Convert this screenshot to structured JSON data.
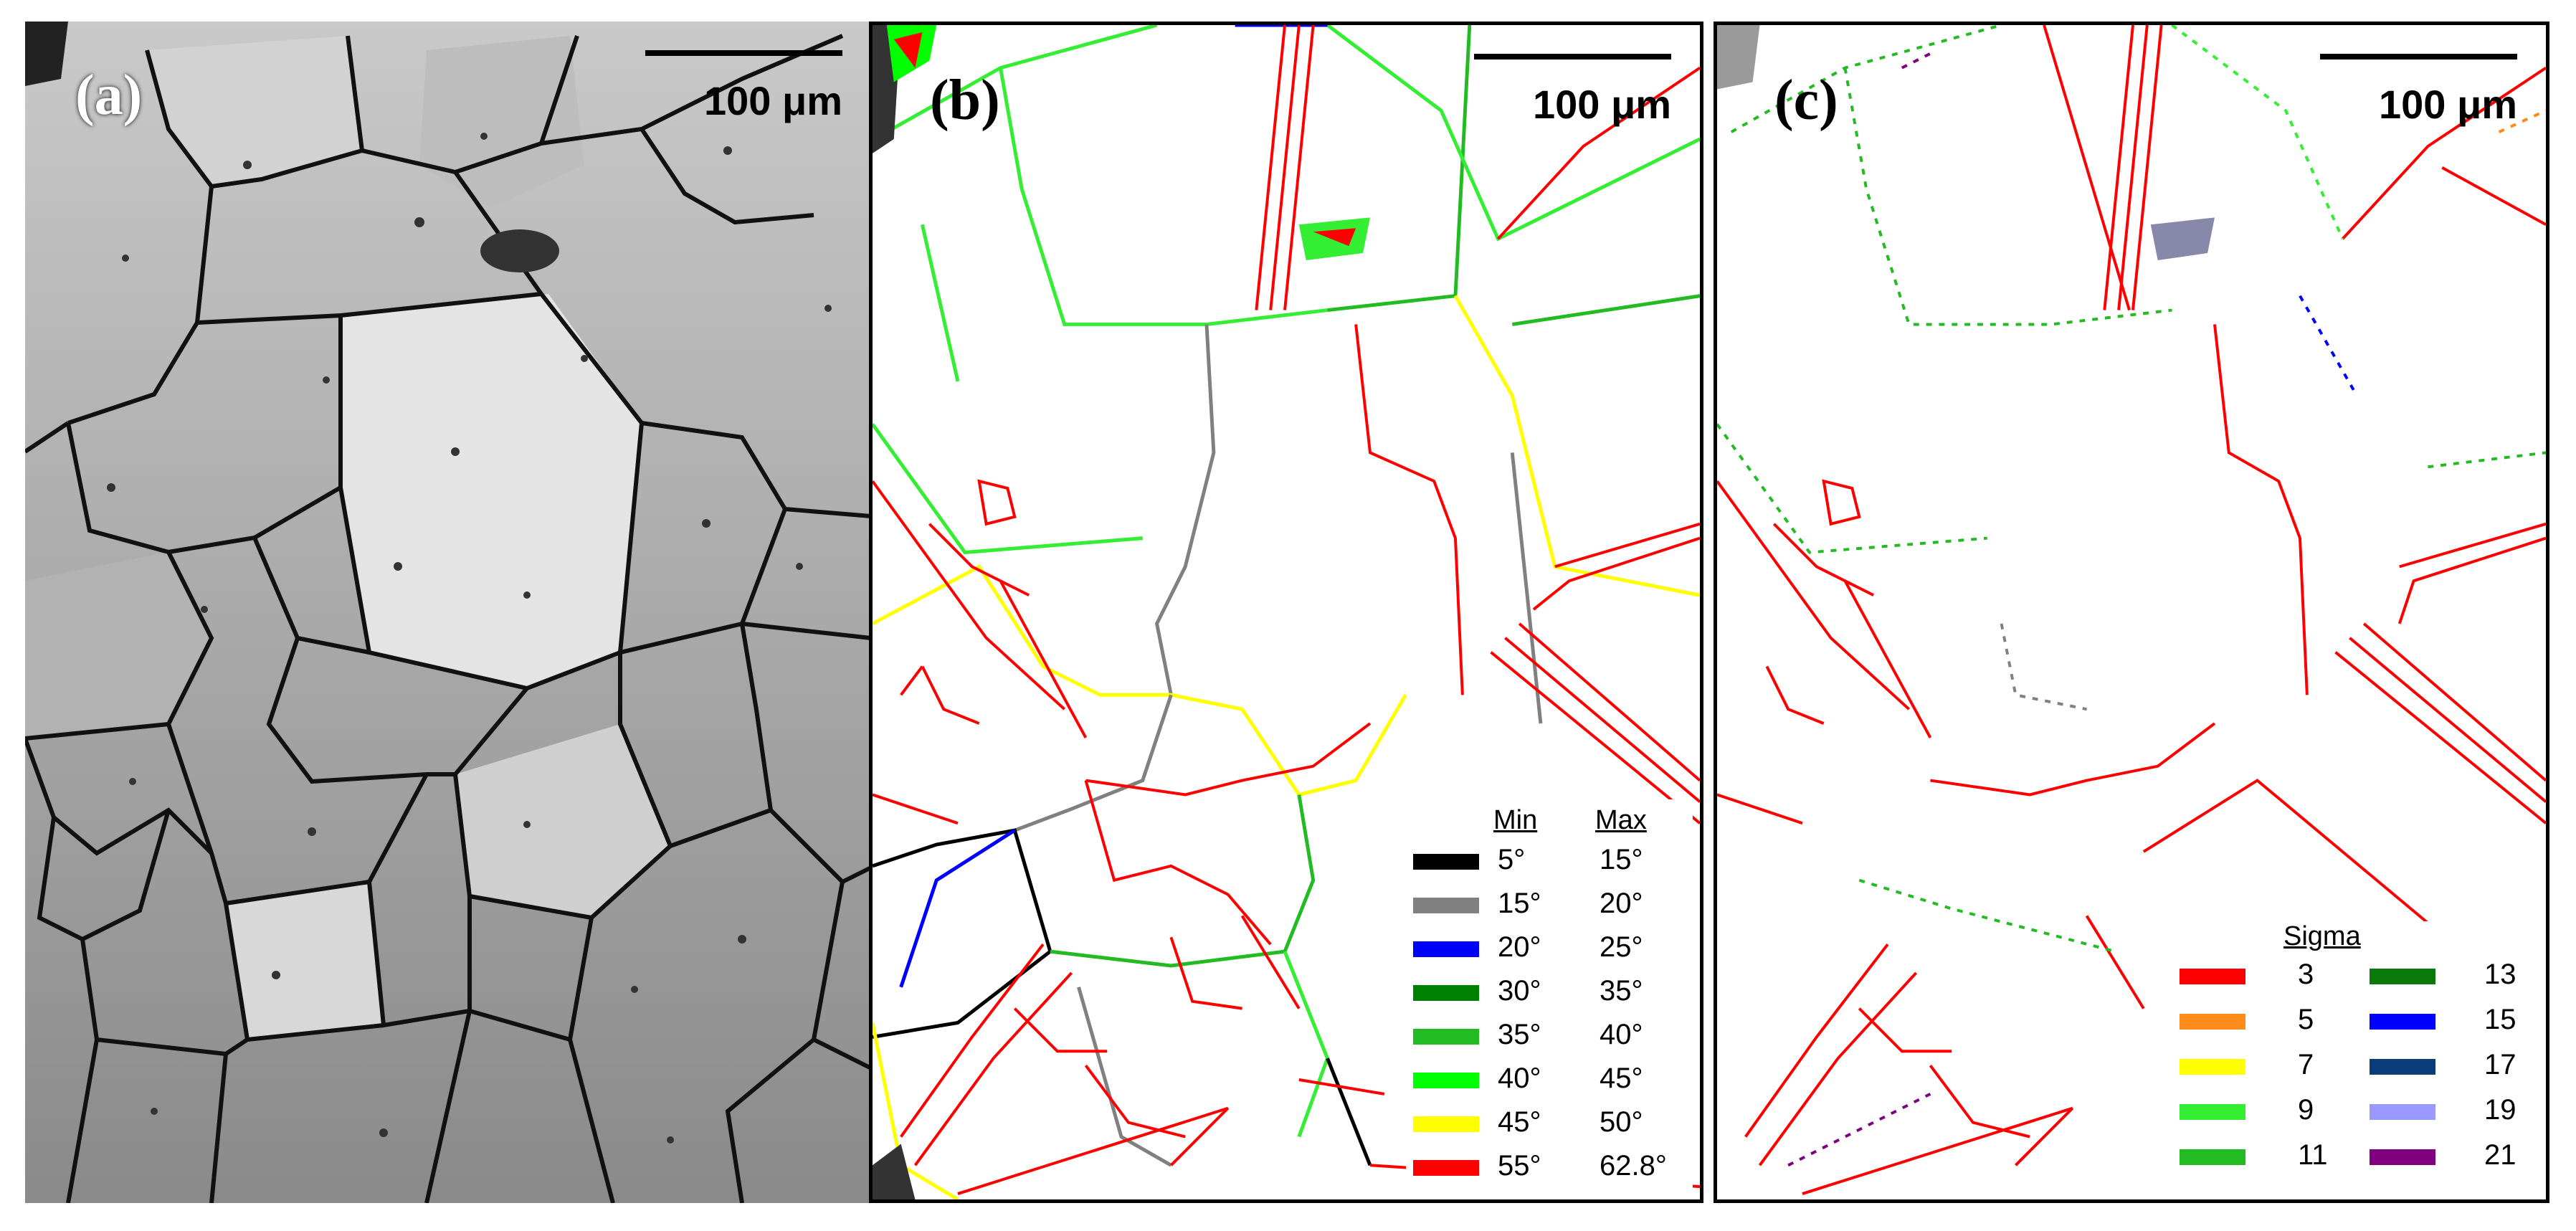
{
  "panels": [
    {
      "label": "(a)",
      "scale_text": "100 μm"
    },
    {
      "label": "(b)",
      "scale_text": "100 μm"
    },
    {
      "label": "(c)",
      "scale_text": "100 μm"
    }
  ],
  "legend_b": {
    "header_min": "Min",
    "header_max": "Max",
    "rows": [
      {
        "min": "5°",
        "max": "15°",
        "color": "#000000"
      },
      {
        "min": "15°",
        "max": "20°",
        "color": "#808080"
      },
      {
        "min": "20°",
        "max": "25°",
        "color": "#0000ff"
      },
      {
        "min": "30°",
        "max": "35°",
        "color": "#008000"
      },
      {
        "min": "35°",
        "max": "40°",
        "color": "#22bb22"
      },
      {
        "min": "40°",
        "max": "45°",
        "color": "#00ff00"
      },
      {
        "min": "45°",
        "max": "50°",
        "color": "#ffff00"
      },
      {
        "min": "55°",
        "max": "62.8°",
        "color": "#ff0000"
      }
    ]
  },
  "legend_c": {
    "header": "Sigma",
    "left": [
      {
        "value": "3",
        "color": "#ff0000"
      },
      {
        "value": "5",
        "color": "#ff8c1a"
      },
      {
        "value": "7",
        "color": "#ffff00"
      },
      {
        "value": "9",
        "color": "#33ee33"
      },
      {
        "value": "11",
        "color": "#22bb22"
      }
    ],
    "right": [
      {
        "value": "13",
        "color": "#0a7a0a"
      },
      {
        "value": "15",
        "color": "#0000ff"
      },
      {
        "value": "17",
        "color": "#0a3d7a"
      },
      {
        "value": "19",
        "color": "#9999ff"
      },
      {
        "value": "21",
        "color": "#800080"
      }
    ]
  }
}
